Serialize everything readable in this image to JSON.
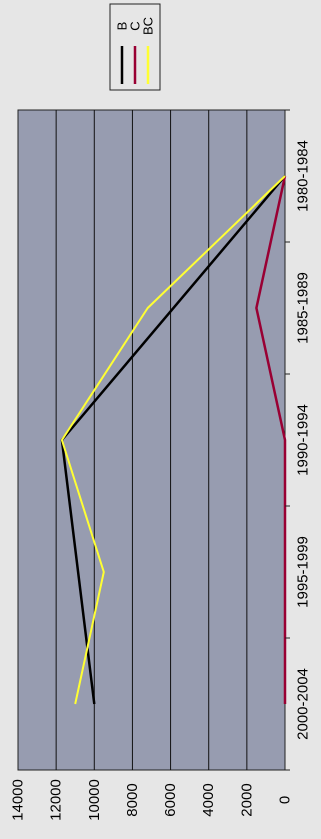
{
  "chart_data": {
    "type": "line",
    "orientation": "rotated",
    "categories": [
      "1980-1984",
      "1985-1989",
      "1990-1994",
      "1995-1999",
      "2000-2004"
    ],
    "y_ticks": [
      0,
      2000,
      4000,
      6000,
      8000,
      10000,
      12000,
      14000
    ],
    "ylim": [
      0,
      14000
    ],
    "grid": true,
    "legend_position": "top-right",
    "series": [
      {
        "name": "B",
        "color": "#000000",
        "x": [
          "1980-1984",
          "1990-1994",
          "2000-2004"
        ],
        "values": [
          0,
          11700,
          10000
        ]
      },
      {
        "name": "C",
        "color": "#990033",
        "x": [
          "1980-1984",
          "1985-1989",
          "1990-1994",
          "1995-1999",
          "2000-2004"
        ],
        "values": [
          0,
          1500,
          0,
          0,
          0
        ]
      },
      {
        "name": "BC",
        "color": "#ffff33",
        "x": [
          "1980-1984",
          "1985-1989",
          "1990-1994",
          "1995-1999",
          "2000-2004"
        ],
        "values": [
          0,
          7200,
          11700,
          9500,
          11000
        ]
      }
    ]
  }
}
